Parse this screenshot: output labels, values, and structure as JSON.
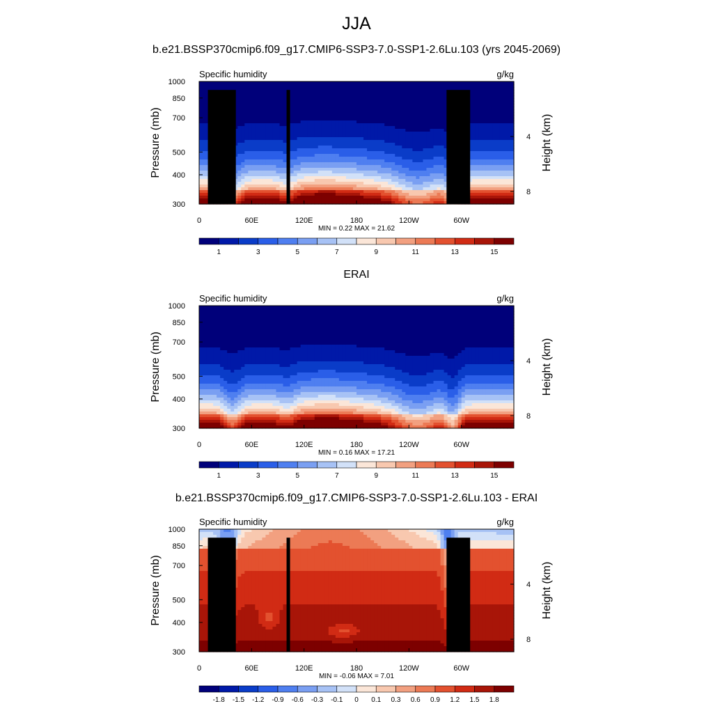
{
  "figure": {
    "title": "JJA"
  },
  "colorbars": {
    "absolute": {
      "colors": [
        "#00007a",
        "#0019a8",
        "#0a3cc8",
        "#2a5ee8",
        "#4f7ff0",
        "#7a9ff2",
        "#a7c2f5",
        "#d2e1f8",
        "#fbe6d8",
        "#f8c8af",
        "#f2a080",
        "#ec7a55",
        "#e3512f",
        "#d12b14",
        "#a81508",
        "#7d0000"
      ],
      "labels": [
        "1",
        "3",
        "5",
        "7",
        "9",
        "11",
        "13",
        "15"
      ]
    },
    "difference": {
      "colors": [
        "#00007a",
        "#0019a8",
        "#0a3cc8",
        "#2a5ee8",
        "#4f7ff0",
        "#7a9ff2",
        "#a7c2f5",
        "#d2e1f8",
        "#fbe6d8",
        "#f8c8af",
        "#f2a080",
        "#ec7a55",
        "#e3512f",
        "#d12b14",
        "#a81508",
        "#7d0000"
      ],
      "labels": [
        "-1.8",
        "-1.5",
        "-1.2",
        "-0.9",
        "-0.6",
        "-0.3",
        "-0.1",
        "0",
        "0.1",
        "0.3",
        "0.6",
        "0.9",
        "1.2",
        "1.5",
        "1.8"
      ]
    }
  },
  "chart_data": [
    {
      "type": "heatmap",
      "title": "b.e21.BSSP370cmip6.f09_g17.CMIP6-SSP3-7.0-SSP1-2.6Lu.103 (yrs 2045-2069)",
      "left_label": "Specific humidity",
      "right_label": "g/kg",
      "ylabel": "Pressure (mb)",
      "y2label": "Height (km)",
      "x_ticks": [
        "0",
        "60E",
        "120E",
        "180",
        "120W",
        "60W"
      ],
      "x_tick_lon": [
        0,
        60,
        120,
        180,
        240,
        300
      ],
      "xlim": [
        0,
        360
      ],
      "y_ticks": [
        "300",
        "400",
        "500",
        "700",
        "850",
        "1000"
      ],
      "y_tick_p": [
        300,
        400,
        500,
        700,
        850,
        1000
      ],
      "ylim": [
        1000,
        300
      ],
      "y_scale": "log",
      "y2_ticks": [
        "8",
        "4"
      ],
      "y2_tick_km": [
        8,
        4
      ],
      "stats": "MIN =   0.22  MAX =  21.62",
      "field": "model",
      "topography": [
        {
          "lon0": 10,
          "lon1": 42,
          "p": 920
        },
        {
          "lon0": 27,
          "lon1": 35,
          "p": 850
        },
        {
          "lon0": 100,
          "lon1": 104,
          "p": 920
        },
        {
          "lon0": 283,
          "lon1": 310,
          "p": 920
        }
      ]
    },
    {
      "type": "heatmap",
      "title": "ERAI",
      "left_label": "Specific humidity",
      "right_label": "g/kg",
      "ylabel": "Pressure (mb)",
      "y2label": "Height (km)",
      "x_ticks": [
        "0",
        "60E",
        "120E",
        "180",
        "120W",
        "60W"
      ],
      "x_tick_lon": [
        0,
        60,
        120,
        180,
        240,
        300
      ],
      "xlim": [
        0,
        360
      ],
      "y_ticks": [
        "300",
        "400",
        "500",
        "700",
        "850",
        "1000"
      ],
      "y_tick_p": [
        300,
        400,
        500,
        700,
        850,
        1000
      ],
      "ylim": [
        1000,
        300
      ],
      "y_scale": "log",
      "y2_ticks": [
        "8",
        "4"
      ],
      "y2_tick_km": [
        8,
        4
      ],
      "stats": "MIN =   0.16  MAX =  17.21",
      "field": "obs",
      "topography": []
    },
    {
      "type": "heatmap",
      "title": "b.e21.BSSP370cmip6.f09_g17.CMIP6-SSP3-7.0-SSP1-2.6Lu.103 - ERAI",
      "left_label": "Specific humidity",
      "right_label": "g/kg",
      "ylabel": "Pressure (mb)",
      "y2label": "Height (km)",
      "x_ticks": [
        "0",
        "60E",
        "120E",
        "180",
        "120W",
        "60W"
      ],
      "x_tick_lon": [
        0,
        60,
        120,
        180,
        240,
        300
      ],
      "xlim": [
        0,
        360
      ],
      "y_ticks": [
        "300",
        "400",
        "500",
        "700",
        "850",
        "1000"
      ],
      "y_tick_p": [
        300,
        400,
        500,
        700,
        850,
        1000
      ],
      "ylim": [
        1000,
        300
      ],
      "y_scale": "log",
      "y2_ticks": [
        "8",
        "4"
      ],
      "y2_tick_km": [
        8,
        4
      ],
      "stats": "MIN =  -0.06  MAX =   7.01",
      "field": "diff",
      "topography": [
        {
          "lon0": 10,
          "lon1": 42,
          "p": 920
        },
        {
          "lon0": 27,
          "lon1": 35,
          "p": 850
        },
        {
          "lon0": 100,
          "lon1": 104,
          "p": 920
        },
        {
          "lon0": 283,
          "lon1": 310,
          "p": 920
        }
      ]
    }
  ]
}
